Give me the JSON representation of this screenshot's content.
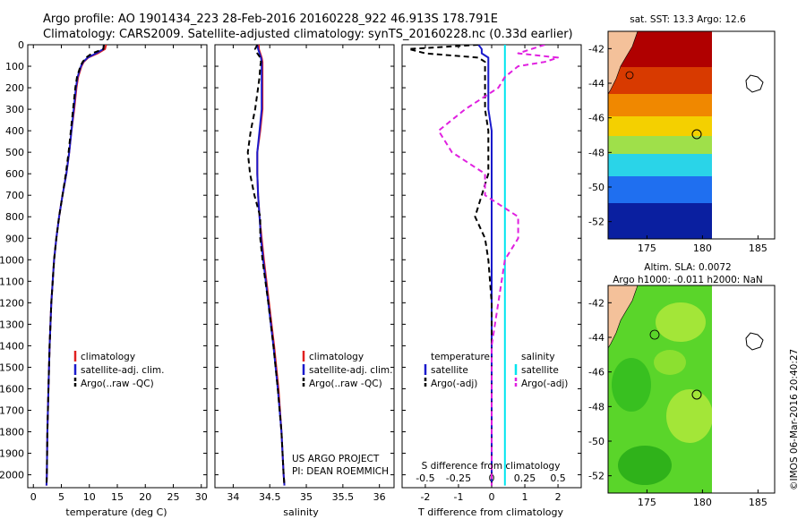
{
  "header": {
    "line1": "Argo profile: AO 1901434_223 28-Feb-2016 20160228_922 46.913S 178.791E",
    "line2": "Climatology: CARS2009. Satellite-adjusted climatology: synTS_20160228.nc (0.33d earlier)"
  },
  "credits": {
    "project": "US ARGO PROJECT",
    "pi": "PI: DEAN ROEMMICH",
    "stamp": "©IMOS 06-Mar-2016 20:40:27"
  },
  "colors": {
    "climatology": "#e02020",
    "satellite": "#1a1acc",
    "argo": "#000000",
    "sat_s_diff": "#00e5ee",
    "argo_s_diff": "#e020e0",
    "land": "#f4c19a"
  },
  "chart_data": [
    {
      "type": "line",
      "panel": "temperature",
      "xlabel": "temperature (deg C)",
      "ylabel": "depth (dbar)",
      "xlim": [
        -1,
        31
      ],
      "ylim": [
        2060,
        0
      ],
      "xticks": [
        0,
        5,
        10,
        15,
        20,
        25,
        30
      ],
      "yticks": [
        0,
        100,
        200,
        300,
        400,
        500,
        600,
        700,
        800,
        900,
        1000,
        1100,
        1200,
        1300,
        1400,
        1500,
        1600,
        1700,
        1800,
        1900,
        2000
      ],
      "legend": [
        "climatology",
        "satellite-adj. clim.",
        "Argo(..raw -QC)"
      ],
      "legend_position": "bottom-center",
      "depth": [
        0,
        20,
        40,
        60,
        80,
        100,
        150,
        200,
        300,
        400,
        500,
        600,
        700,
        800,
        900,
        1000,
        1200,
        1400,
        1600,
        1800,
        2000,
        2050
      ],
      "series": [
        {
          "name": "climatology",
          "style": "solid",
          "values": [
            13.0,
            12.8,
            11.5,
            9.8,
            9.0,
            8.6,
            8.0,
            7.7,
            7.3,
            6.8,
            6.4,
            5.9,
            5.2,
            4.6,
            4.1,
            3.7,
            3.2,
            2.9,
            2.7,
            2.5,
            2.4,
            2.35
          ]
        },
        {
          "name": "satellite-adj. clim.",
          "style": "solid",
          "values": [
            12.6,
            12.5,
            11.2,
            9.7,
            8.9,
            8.5,
            7.9,
            7.6,
            7.2,
            6.8,
            6.4,
            5.9,
            5.2,
            4.6,
            4.1,
            3.7,
            3.2,
            2.9,
            2.7,
            2.5,
            2.4,
            2.35
          ]
        },
        {
          "name": "Argo(..raw -QC)",
          "style": "dashed",
          "values": [
            12.6,
            12.5,
            10.5,
            9.4,
            8.8,
            8.4,
            7.8,
            7.5,
            7.1,
            6.7,
            6.3,
            5.8,
            5.2,
            4.6,
            4.1,
            3.7,
            3.2,
            2.9,
            2.7,
            2.5,
            2.4,
            2.35
          ]
        }
      ]
    },
    {
      "type": "line",
      "panel": "salinity",
      "xlabel": "salinity",
      "xlim": [
        33.75,
        36.2
      ],
      "ylim": [
        2060,
        0
      ],
      "xticks": [
        34,
        34.5,
        35,
        35.5,
        36
      ],
      "legend": [
        "climatology",
        "satellite-adj. clim.",
        "Argo(..raw -QC)"
      ],
      "legend_position": "bottom-center",
      "depth": [
        0,
        20,
        40,
        60,
        80,
        100,
        150,
        200,
        300,
        400,
        500,
        600,
        700,
        800,
        900,
        1000,
        1200,
        1400,
        1600,
        1800,
        2000,
        2050
      ],
      "series": [
        {
          "name": "climatology",
          "style": "solid",
          "values": [
            34.35,
            34.35,
            34.37,
            34.39,
            34.4,
            34.4,
            34.4,
            34.4,
            34.4,
            34.37,
            34.33,
            34.33,
            34.34,
            34.36,
            34.39,
            34.42,
            34.49,
            34.56,
            34.62,
            34.66,
            34.69,
            34.7
          ]
        },
        {
          "name": "satellite-adj. clim.",
          "style": "solid",
          "values": [
            34.33,
            34.34,
            34.36,
            34.38,
            34.39,
            34.39,
            34.39,
            34.39,
            34.39,
            34.36,
            34.33,
            34.33,
            34.34,
            34.36,
            34.38,
            34.41,
            34.48,
            34.55,
            34.61,
            34.66,
            34.69,
            34.7
          ]
        },
        {
          "name": "Argo(..raw -QC)",
          "style": "dashed",
          "values": [
            34.33,
            34.3,
            34.33,
            34.37,
            34.38,
            34.37,
            34.36,
            34.34,
            34.3,
            34.24,
            34.2,
            34.23,
            34.29,
            34.37,
            34.37,
            34.4,
            34.48,
            34.55,
            34.61,
            34.66,
            34.69,
            34.7
          ]
        }
      ]
    },
    {
      "type": "line",
      "panel": "difference",
      "xlabel": "T difference from climatology",
      "top_label": "S difference from climatology",
      "xlim": [
        -2.7,
        2.7
      ],
      "ylim": [
        2060,
        0
      ],
      "xticks": [
        -2,
        -1,
        0,
        1,
        2
      ],
      "s_ticks": [
        -0.5,
        -0.25,
        0,
        0.25,
        0.5
      ],
      "s_scale_factor": 4,
      "legend_groups": [
        {
          "title": "temperature",
          "items": [
            "satellite",
            "Argo(-adj)"
          ]
        },
        {
          "title": "salinity",
          "items": [
            "satellite",
            "Argo(-adj)"
          ]
        }
      ],
      "legend_position": "bottom-center",
      "depth": [
        0,
        20,
        40,
        60,
        80,
        100,
        150,
        200,
        300,
        400,
        500,
        600,
        700,
        800,
        900,
        1000,
        1200,
        1400,
        1600,
        1800,
        2000,
        2050
      ],
      "series": [
        {
          "name": "T satellite",
          "style": "solid",
          "values": [
            -0.4,
            -0.3,
            -0.3,
            -0.1,
            -0.1,
            -0.1,
            -0.1,
            -0.1,
            -0.1,
            0,
            0,
            0,
            0,
            0,
            0,
            0,
            0,
            0,
            0,
            0,
            0,
            0
          ]
        },
        {
          "name": "T Argo(-adj)",
          "style": "dashed",
          "values": [
            -0.4,
            -2.5,
            -2.0,
            -0.4,
            -0.2,
            -0.2,
            -0.2,
            -0.2,
            -0.2,
            -0.1,
            -0.1,
            -0.1,
            -0.3,
            -0.5,
            -0.2,
            -0.1,
            0,
            0,
            0,
            0,
            0,
            0
          ]
        },
        {
          "name": "S satellite",
          "style": "solid",
          "values": [
            0.1,
            0.1,
            0.1,
            0.1,
            0.1,
            0.1,
            0.1,
            0.1,
            0.1,
            0.1,
            0.1,
            0.1,
            0.1,
            0.1,
            0.1,
            0.1,
            0.1,
            0.1,
            0.1,
            0.1,
            0.1,
            0.1
          ]
        },
        {
          "name": "S Argo(-adj)",
          "style": "dashed",
          "values": [
            0.4,
            0.3,
            0.2,
            0.5,
            0.4,
            0.2,
            0.1,
            0.05,
            -0.2,
            -0.4,
            -0.3,
            -0.05,
            -0.05,
            0.2,
            0.2,
            0.1,
            0.05,
            0,
            0,
            0,
            0,
            0
          ]
        }
      ]
    },
    {
      "type": "heatmap",
      "panel": "sst-map",
      "title": "sat. SST: 13.3 Argo: 12.6",
      "xlim": [
        171.5,
        186.5
      ],
      "ylim": [
        -53,
        -41
      ],
      "xticks": [
        175,
        180,
        185
      ],
      "yticks": [
        -42,
        -44,
        -46,
        -48,
        -50,
        -52
      ],
      "argo_position": [
        178.79,
        -46.91
      ]
    },
    {
      "type": "heatmap",
      "panel": "sla-map",
      "title_line1": "Altim. SLA: 0.0072",
      "title_line2": "Argo h1000: -0.011 h2000: NaN",
      "xlim": [
        171.5,
        186.5
      ],
      "ylim": [
        -53,
        -41
      ],
      "xticks": [
        175,
        180,
        185
      ],
      "yticks": [
        -42,
        -44,
        -46,
        -48,
        -50,
        -52
      ],
      "argo_position": [
        178.79,
        -46.91
      ]
    }
  ]
}
